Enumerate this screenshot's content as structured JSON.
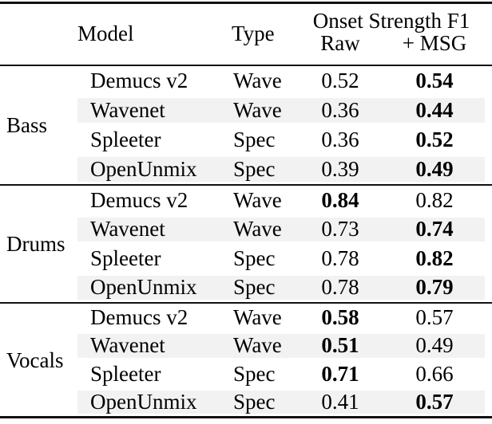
{
  "table": {
    "header": {
      "model": "Model",
      "type": "Type",
      "group_header": "Onset Strength F1",
      "sub_raw": "Raw",
      "sub_msg": "+ MSG"
    },
    "sections": [
      {
        "group": "Bass",
        "rows": [
          {
            "model": "Demucs v2",
            "type": "Wave",
            "raw": "0.52",
            "raw_bold": false,
            "msg": "0.54",
            "msg_bold": true,
            "shaded": false
          },
          {
            "model": "Wavenet",
            "type": "Wave",
            "raw": "0.36",
            "raw_bold": false,
            "msg": "0.44",
            "msg_bold": true,
            "shaded": true
          },
          {
            "model": "Spleeter",
            "type": "Spec",
            "raw": "0.36",
            "raw_bold": false,
            "msg": "0.52",
            "msg_bold": true,
            "shaded": false
          },
          {
            "model": "OpenUnmix",
            "type": "Spec",
            "raw": "0.39",
            "raw_bold": false,
            "msg": "0.49",
            "msg_bold": true,
            "shaded": true
          }
        ]
      },
      {
        "group": "Drums",
        "rows": [
          {
            "model": "Demucs v2",
            "type": "Wave",
            "raw": "0.84",
            "raw_bold": true,
            "msg": "0.82",
            "msg_bold": false,
            "shaded": false
          },
          {
            "model": "Wavenet",
            "type": "Wave",
            "raw": "0.73",
            "raw_bold": false,
            "msg": "0.74",
            "msg_bold": true,
            "shaded": true
          },
          {
            "model": "Spleeter",
            "type": "Spec",
            "raw": "0.78",
            "raw_bold": false,
            "msg": "0.82",
            "msg_bold": true,
            "shaded": false
          },
          {
            "model": "OpenUnmix",
            "type": "Spec",
            "raw": "0.78",
            "raw_bold": false,
            "msg": "0.79",
            "msg_bold": true,
            "shaded": true
          }
        ]
      },
      {
        "group": "Vocals",
        "rows": [
          {
            "model": "Demucs v2",
            "type": "Wave",
            "raw": "0.58",
            "raw_bold": true,
            "msg": "0.57",
            "msg_bold": false,
            "shaded": false
          },
          {
            "model": "Wavenet",
            "type": "Wave",
            "raw": "0.51",
            "raw_bold": true,
            "msg": "0.49",
            "msg_bold": false,
            "shaded": true
          },
          {
            "model": "Spleeter",
            "type": "Spec",
            "raw": "0.71",
            "raw_bold": true,
            "msg": "0.66",
            "msg_bold": false,
            "shaded": false
          },
          {
            "model": "OpenUnmix",
            "type": "Spec",
            "raw": "0.41",
            "raw_bold": false,
            "msg": "0.57",
            "msg_bold": true,
            "shaded": true
          }
        ]
      }
    ]
  },
  "colors": {
    "row_stripe": "#f2f2f2",
    "rule": "#111111",
    "text": "#000000",
    "background": "#ffffff"
  }
}
